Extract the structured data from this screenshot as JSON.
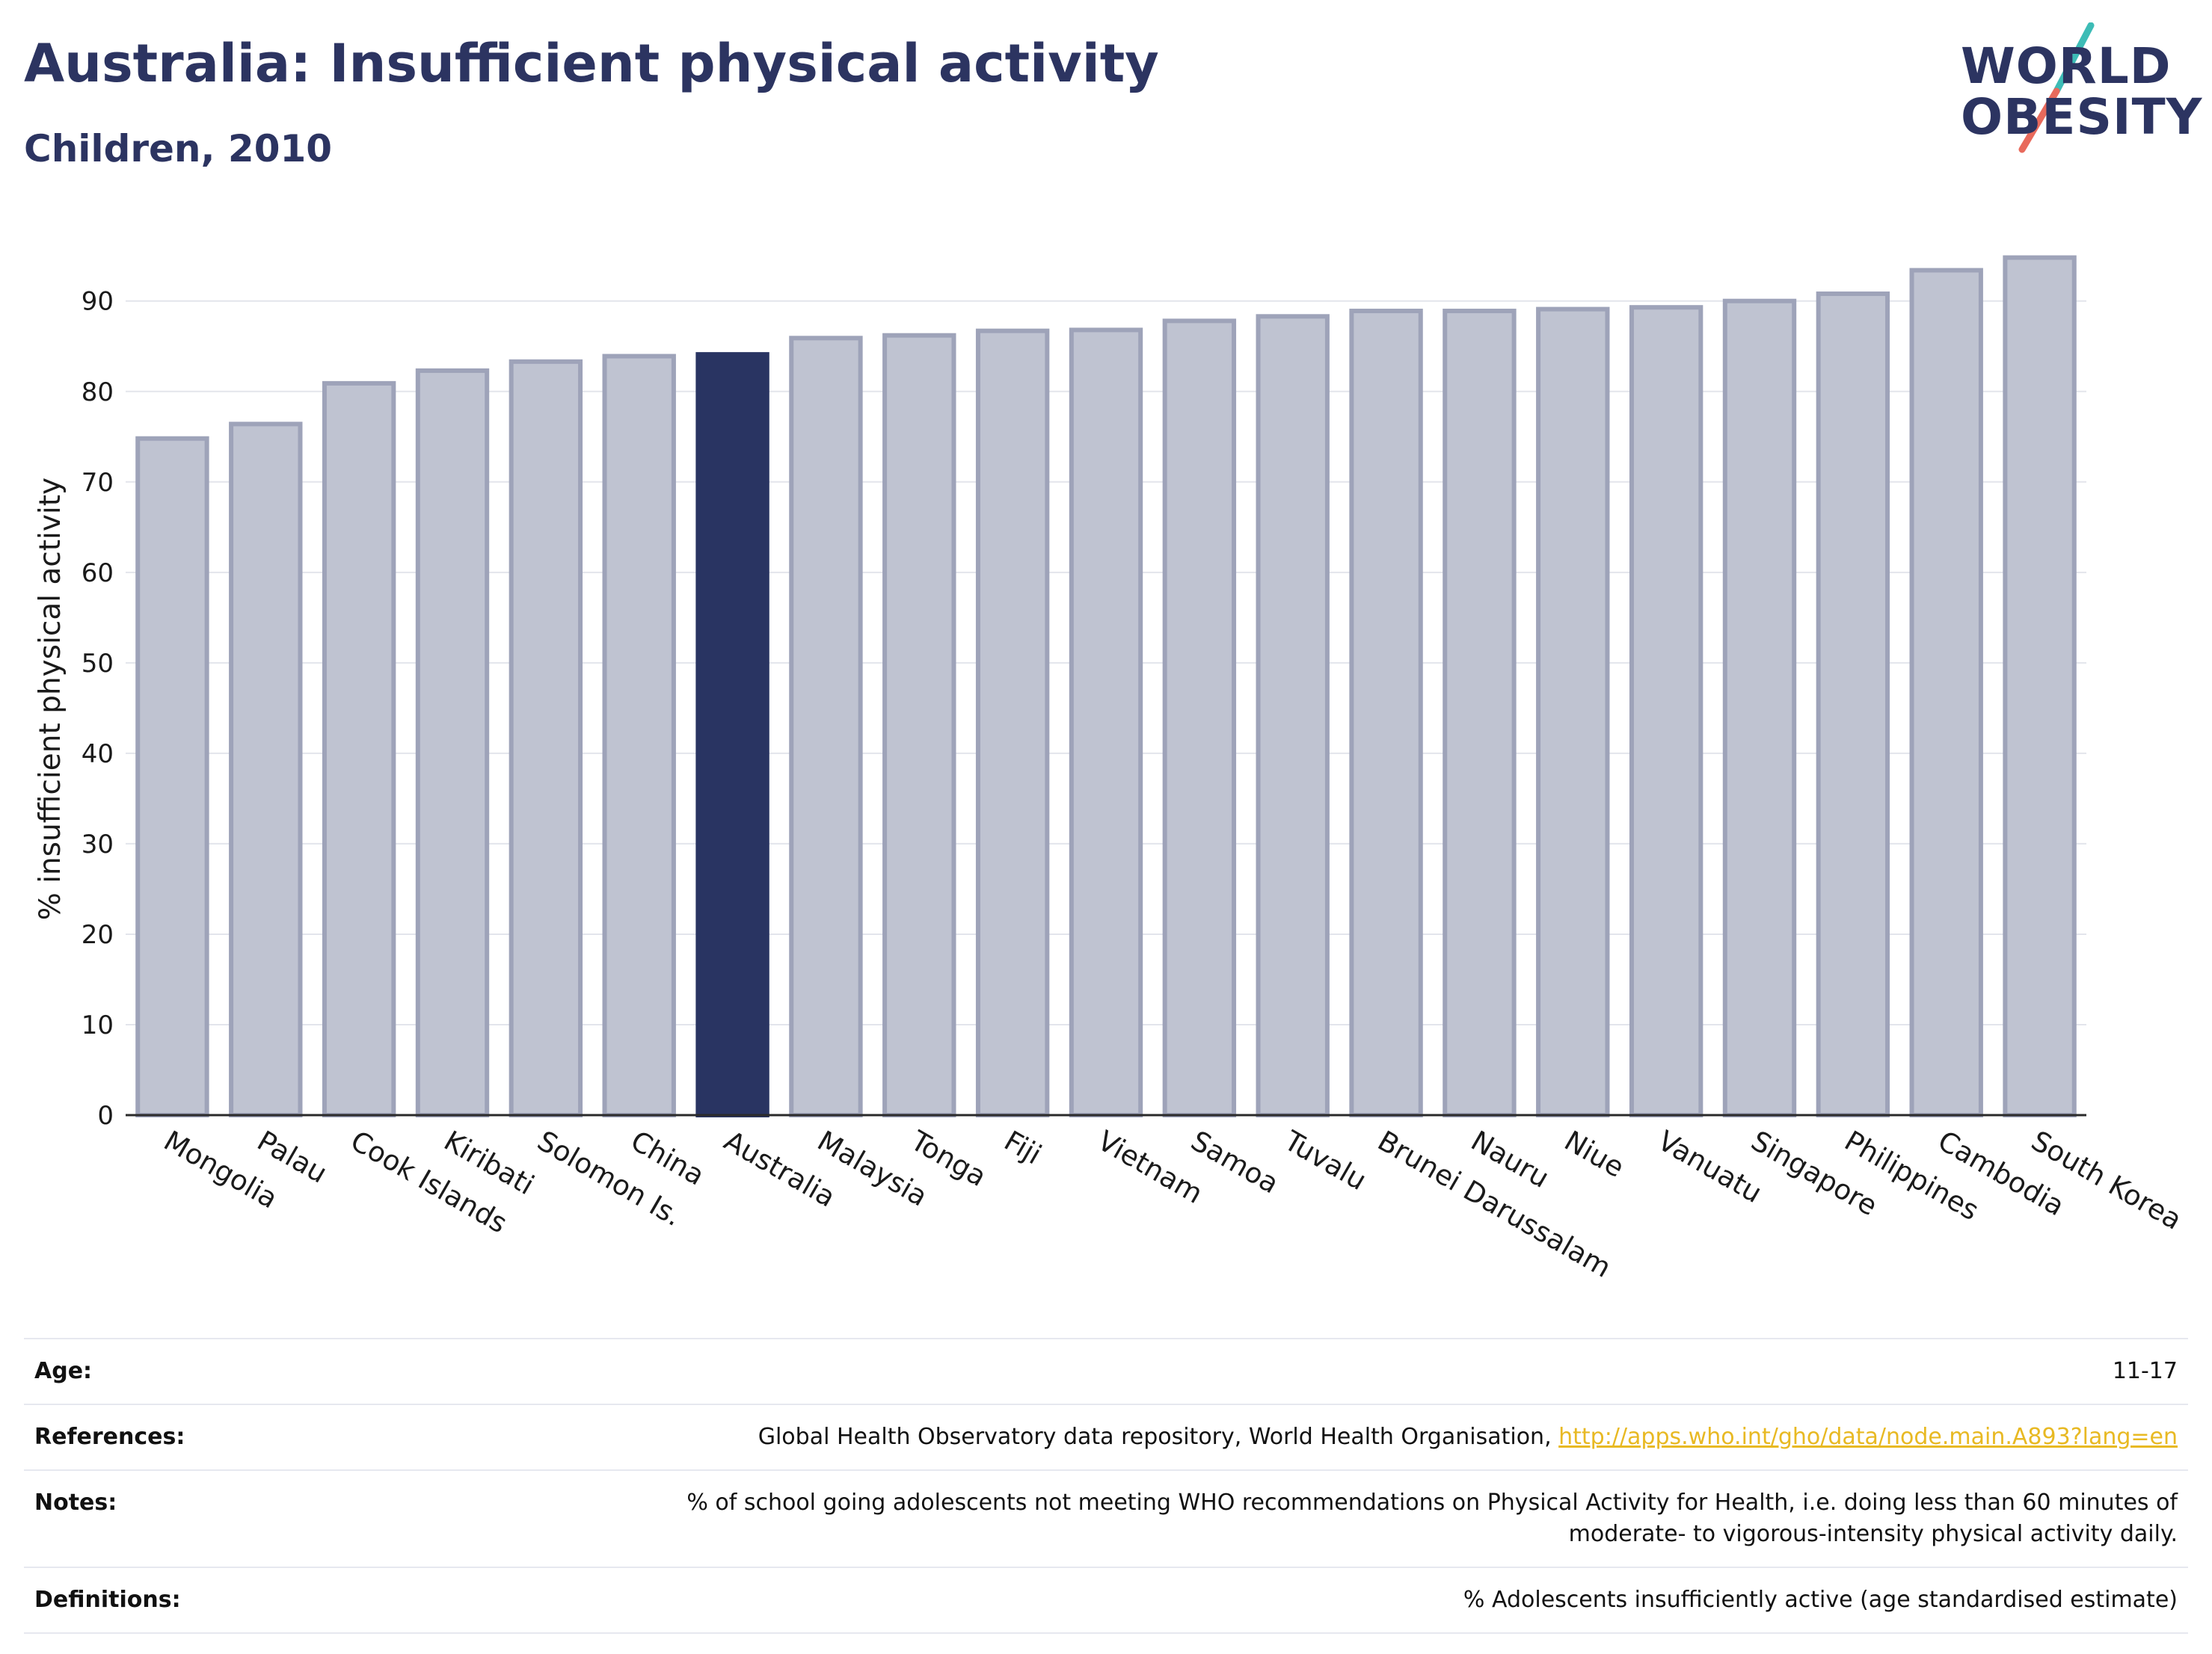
{
  "header": {
    "title": "Australia: Insufficient physical activity",
    "subtitle": "Children, 2010"
  },
  "logo": {
    "line1": "WORLD",
    "line2": "OBESITY",
    "slash_colors": [
      "#3dbcb6",
      "#e86a5c"
    ]
  },
  "colors": {
    "highlight_bar": "#293462",
    "other_bar_fill": "#bfc3d1",
    "other_bar_stroke": "#9ea3b9",
    "text": "#2c3461",
    "link": "#e8b923"
  },
  "chart_data": {
    "type": "bar",
    "title": "",
    "xlabel": "",
    "ylabel": "% insufficient physical activity",
    "ylim": [
      0,
      97
    ],
    "yticks": [
      0,
      10,
      20,
      30,
      40,
      50,
      60,
      70,
      80,
      90
    ],
    "grid": true,
    "highlight": "Australia",
    "categories": [
      "Mongolia",
      "Palau",
      "Cook Islands",
      "Kiribati",
      "Solomon Is.",
      "China",
      "Australia",
      "Malaysia",
      "Tonga",
      "Fiji",
      "Vietnam",
      "Samoa",
      "Tuvalu",
      "Brunei Darussalam",
      "Nauru",
      "Niue",
      "Vanuatu",
      "Singapore",
      "Philippines",
      "Cambodia",
      "South Korea"
    ],
    "values": [
      74.8,
      76.4,
      80.9,
      82.3,
      83.3,
      83.9,
      84.1,
      85.9,
      86.2,
      86.7,
      86.8,
      87.8,
      88.3,
      88.9,
      88.9,
      89.1,
      89.3,
      90.0,
      90.8,
      93.4,
      94.8
    ]
  },
  "info": {
    "age_label": "Age:",
    "age_value": "11-17",
    "references_label": "References:",
    "references_text": "Global Health Observatory data repository, World Health Organisation, ",
    "references_link": "http://apps.who.int/gho/data/node.main.A893?lang=en",
    "notes_label": "Notes:",
    "notes_line1": "% of school going adolescents not meeting WHO recommendations on Physical Activity for Health, i.e. doing less than 60 minutes of",
    "notes_line2": "moderate- to vigorous-intensity physical activity daily.",
    "definitions_label": "Definitions:",
    "definitions_value": "% Adolescents insufficiently active (age standardised estimate)"
  }
}
